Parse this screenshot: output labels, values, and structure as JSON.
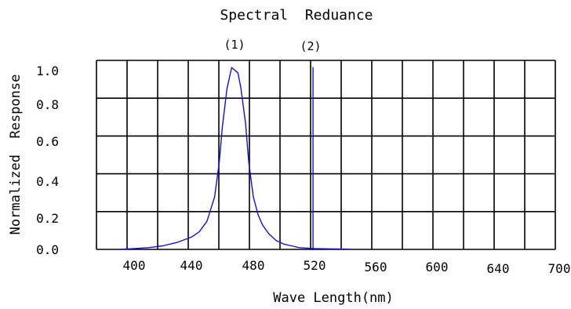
{
  "chart_data": {
    "type": "line",
    "title": "Spectral  Reduance",
    "xlabel": "Wave Length(nm)",
    "ylabel": "Normalized  Response",
    "xlim": [
      380,
      700
    ],
    "ylim": [
      0,
      1.0
    ],
    "x_ticks": [
      400,
      440,
      480,
      520,
      560,
      600,
      640,
      700
    ],
    "x_tick_labels": [
      "400",
      "440",
      "480",
      "520",
      "560",
      "600",
      "640",
      "700"
    ],
    "y_ticks": [
      0.0,
      0.2,
      0.4,
      0.6,
      0.8,
      1.0
    ],
    "y_tick_labels": [
      "0.0",
      "0.2",
      "0.4",
      "0.6",
      "0.8",
      "1.0"
    ],
    "grid": true,
    "annotations": [
      "(1)",
      "(2)"
    ],
    "series_color": "#1010dd",
    "series": [
      {
        "x": [
          388,
          400,
          410,
          420,
          430,
          440,
          445,
          450,
          455,
          458,
          460,
          463,
          466,
          470,
          472,
          475,
          477,
          480,
          483,
          486,
          490,
          495,
          500,
          505,
          510,
          520,
          530,
          540,
          545
        ],
        "y": [
          0.0,
          0.005,
          0.01,
          0.02,
          0.04,
          0.07,
          0.1,
          0.16,
          0.3,
          0.5,
          0.7,
          0.92,
          1.04,
          1.01,
          0.92,
          0.72,
          0.5,
          0.3,
          0.2,
          0.14,
          0.09,
          0.05,
          0.03,
          0.02,
          0.01,
          0.005,
          0.003,
          0.002,
          0.0
        ]
      },
      {
        "x": [
          519,
          519
        ],
        "y": [
          0.0,
          1.04
        ]
      }
    ]
  }
}
